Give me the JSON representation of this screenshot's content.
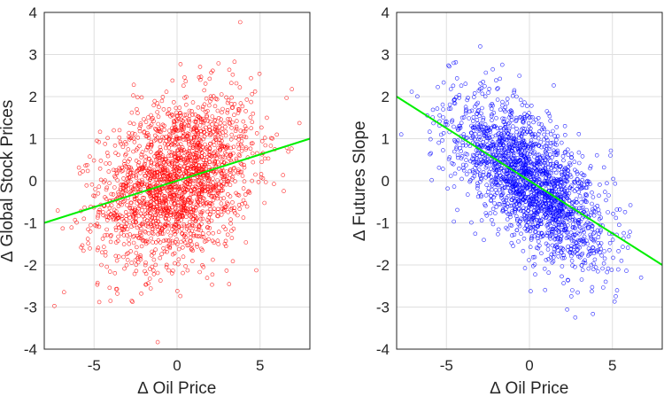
{
  "chart_data": [
    {
      "type": "scatter",
      "xlabel": "∆ Oil Price",
      "ylabel": "∆ Global Stock Prices",
      "xlim": [
        -8,
        8
      ],
      "ylim": [
        -4,
        4
      ],
      "xticks": [
        -5,
        0,
        5
      ],
      "yticks": [
        -4,
        -3,
        -2,
        -1,
        0,
        1,
        2,
        3,
        4
      ],
      "grid": true,
      "marker_color": "#ff0000",
      "fit_color": "#00ee00",
      "n_points": 2000,
      "x_sd": 2.3,
      "correlation": 0.3,
      "series": [
        {
          "fit_line": {
            "x": [
              -8,
              8
            ],
            "y": [
              -1.0,
              1.0
            ]
          }
        }
      ]
    },
    {
      "type": "scatter",
      "xlabel": "∆ Oil Price",
      "ylabel": "∆ Futures Slope",
      "xlim": [
        -8,
        8
      ],
      "ylim": [
        -4,
        4
      ],
      "xticks": [
        -5,
        0,
        5
      ],
      "yticks": [
        -4,
        -3,
        -2,
        -1,
        0,
        1,
        2,
        3,
        4
      ],
      "grid": true,
      "marker_color": "#0000ff",
      "fit_color": "#00ee00",
      "n_points": 2000,
      "x_sd": 2.3,
      "correlation": -0.65,
      "series": [
        {
          "fit_line": {
            "x": [
              -8,
              8
            ],
            "y": [
              2.0,
              -2.0
            ]
          }
        }
      ]
    }
  ]
}
